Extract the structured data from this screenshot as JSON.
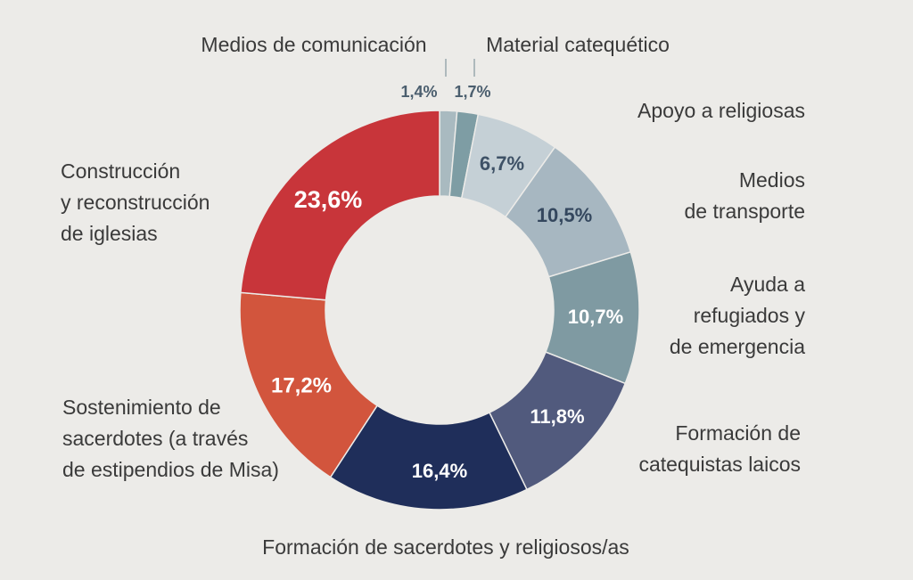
{
  "chart_data": {
    "type": "pie",
    "slices": [
      {
        "label_lines": [
          "Medios de comunicación"
        ],
        "value": 1.4,
        "value_label": "1,4%",
        "color": "#a9bac0",
        "text_color": "#4b5e6e"
      },
      {
        "label_lines": [
          "Material catequético"
        ],
        "value": 1.7,
        "value_label": "1,7%",
        "color": "#7e9da4",
        "text_color": "#4b5e6e"
      },
      {
        "label_lines": [
          "Apoyo a religiosas"
        ],
        "value": 6.7,
        "value_label": "6,7%",
        "color": "#c5d0d6",
        "text_color": "#3e5166"
      },
      {
        "label_lines": [
          "Medios",
          "de transporte"
        ],
        "value": 10.5,
        "value_label": "10,5%",
        "color": "#a7b7c1",
        "text_color": "#34475e"
      },
      {
        "label_lines": [
          "Ayuda a",
          "refugiados y",
          "de emergencia"
        ],
        "value": 10.7,
        "value_label": "10,7%",
        "color": "#7f9aa2",
        "text_color": "#ffffff"
      },
      {
        "label_lines": [
          "Formación de",
          "catequistas laicos"
        ],
        "value": 11.8,
        "value_label": "11,8%",
        "color": "#515a7d",
        "text_color": "#ffffff"
      },
      {
        "label_lines": [
          "Formación de sacerdotes y religiosos/as"
        ],
        "value": 16.4,
        "value_label": "16,4%",
        "color": "#1f2e5a",
        "text_color": "#ffffff"
      },
      {
        "label_lines": [
          "Sostenimiento de",
          "sacerdotes (a través",
          "de estipendios de Misa)"
        ],
        "value": 17.2,
        "value_label": "17,2%",
        "color": "#d2553d",
        "text_color": "#ffffff"
      },
      {
        "label_lines": [
          "Construcción",
          "y reconstrucción",
          "de iglesias"
        ],
        "value": 23.6,
        "value_label": "23,6%",
        "color": "#c8353a",
        "text_color": "#ffffff"
      }
    ]
  }
}
